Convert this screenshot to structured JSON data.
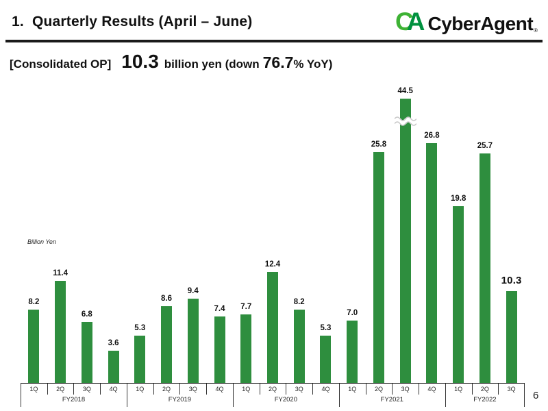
{
  "header": {
    "title": "1.  Quarterly Results (April – June)",
    "logo": {
      "mark_c": "C",
      "mark_a": "A",
      "wordmark": "CyberAgent",
      "registered": "®",
      "mark_c_color": "#3eb234",
      "mark_a_color": "#00913f"
    }
  },
  "subtitle": {
    "label": "[Consolidated OP]",
    "op_value": "10.3",
    "mid_text": "billion yen (down",
    "yoy_value": "76.7",
    "tail_text": "% YoY)"
  },
  "page_number": "6",
  "chart_data": {
    "type": "bar",
    "title": "",
    "xlabel": "",
    "ylabel": "Billion Yen",
    "unit": "billion yen",
    "bar_color": "#2e8e3e",
    "grid": false,
    "legend": "none",
    "value_labels_shown": true,
    "groups": [
      {
        "label": "FY2018",
        "quarters": [
          "1Q",
          "2Q",
          "3Q",
          "4Q"
        ],
        "values": [
          8.2,
          11.4,
          6.8,
          3.6
        ]
      },
      {
        "label": "FY2019",
        "quarters": [
          "1Q",
          "2Q",
          "3Q",
          "4Q"
        ],
        "values": [
          5.3,
          8.6,
          9.4,
          7.4
        ]
      },
      {
        "label": "FY2020",
        "quarters": [
          "1Q",
          "2Q",
          "3Q",
          "4Q"
        ],
        "values": [
          7.7,
          12.4,
          8.2,
          5.3
        ]
      },
      {
        "label": "FY2021",
        "quarters": [
          "1Q",
          "2Q",
          "3Q",
          "4Q"
        ],
        "values": [
          7.0,
          25.8,
          44.5,
          26.8
        ]
      },
      {
        "label": "FY2022",
        "quarters": [
          "1Q",
          "2Q",
          "3Q"
        ],
        "values": [
          19.8,
          25.7,
          10.3
        ]
      }
    ],
    "axis_break": {
      "fy": "FY2021",
      "quarter": "3Q",
      "value": 44.5
    },
    "highlight": {
      "fy": "FY2022",
      "quarter": "3Q",
      "value": 10.3
    }
  }
}
